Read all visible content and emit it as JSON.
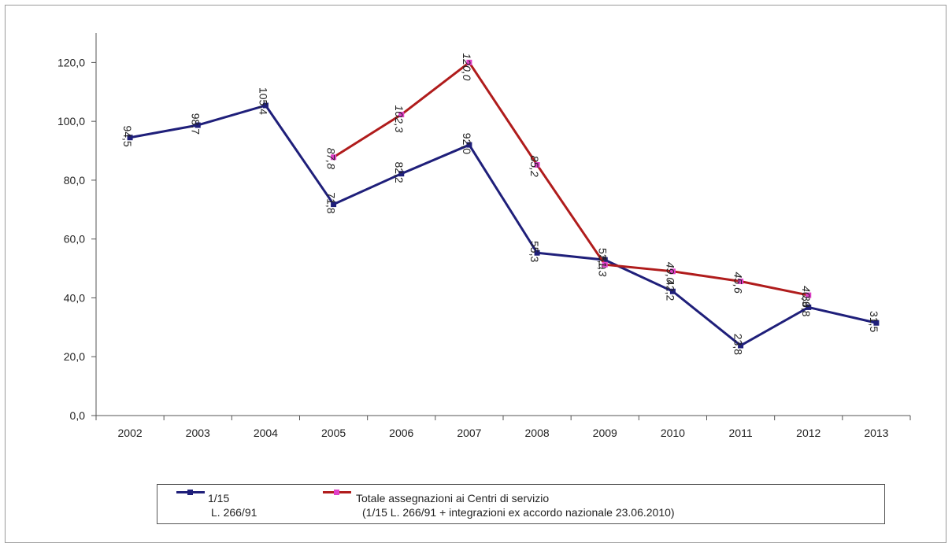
{
  "chart_data": {
    "type": "line",
    "categories": [
      "2002",
      "2003",
      "2004",
      "2005",
      "2006",
      "2007",
      "2008",
      "2009",
      "2010",
      "2011",
      "2012",
      "2013"
    ],
    "ylim": [
      0,
      130
    ],
    "yticks": [
      "0,0",
      "20,0",
      "40,0",
      "60,0",
      "80,0",
      "100,0",
      "120,0"
    ],
    "ytick_values": [
      0,
      20,
      40,
      60,
      80,
      100,
      120
    ],
    "grid": false,
    "legend_position": "bottom",
    "series": [
      {
        "name": "1/15",
        "name_line2": "L. 266/91",
        "color": "#1f1f7a",
        "values": [
          94.5,
          98.7,
          105.4,
          71.8,
          82.2,
          92.0,
          55.3,
          52.9,
          42.2,
          23.8,
          36.8,
          31.5
        ],
        "labels": [
          "94,5",
          "98,7",
          "105,4",
          "71,8",
          "82,2",
          "92,0",
          "55,3",
          "52,9",
          "42,2",
          "23,8",
          "36,8",
          "31,5"
        ]
      },
      {
        "name": "Totale assegnazioni ai Centri di servizio",
        "name_line2": "(1/15 L. 266/91 + integrazioni ex accordo nazionale 23.06.2010)",
        "color": "#b01c1c",
        "marker_color": "#e040c8",
        "values": [
          null,
          null,
          null,
          87.8,
          102.3,
          120.0,
          85.2,
          51.3,
          49.0,
          45.6,
          40.9,
          null
        ],
        "labels": [
          "",
          "",
          "",
          "87,8",
          "102,3",
          "120,0",
          "85,2",
          "51,3",
          "49,0",
          "45,6",
          "40,9",
          ""
        ]
      }
    ]
  }
}
